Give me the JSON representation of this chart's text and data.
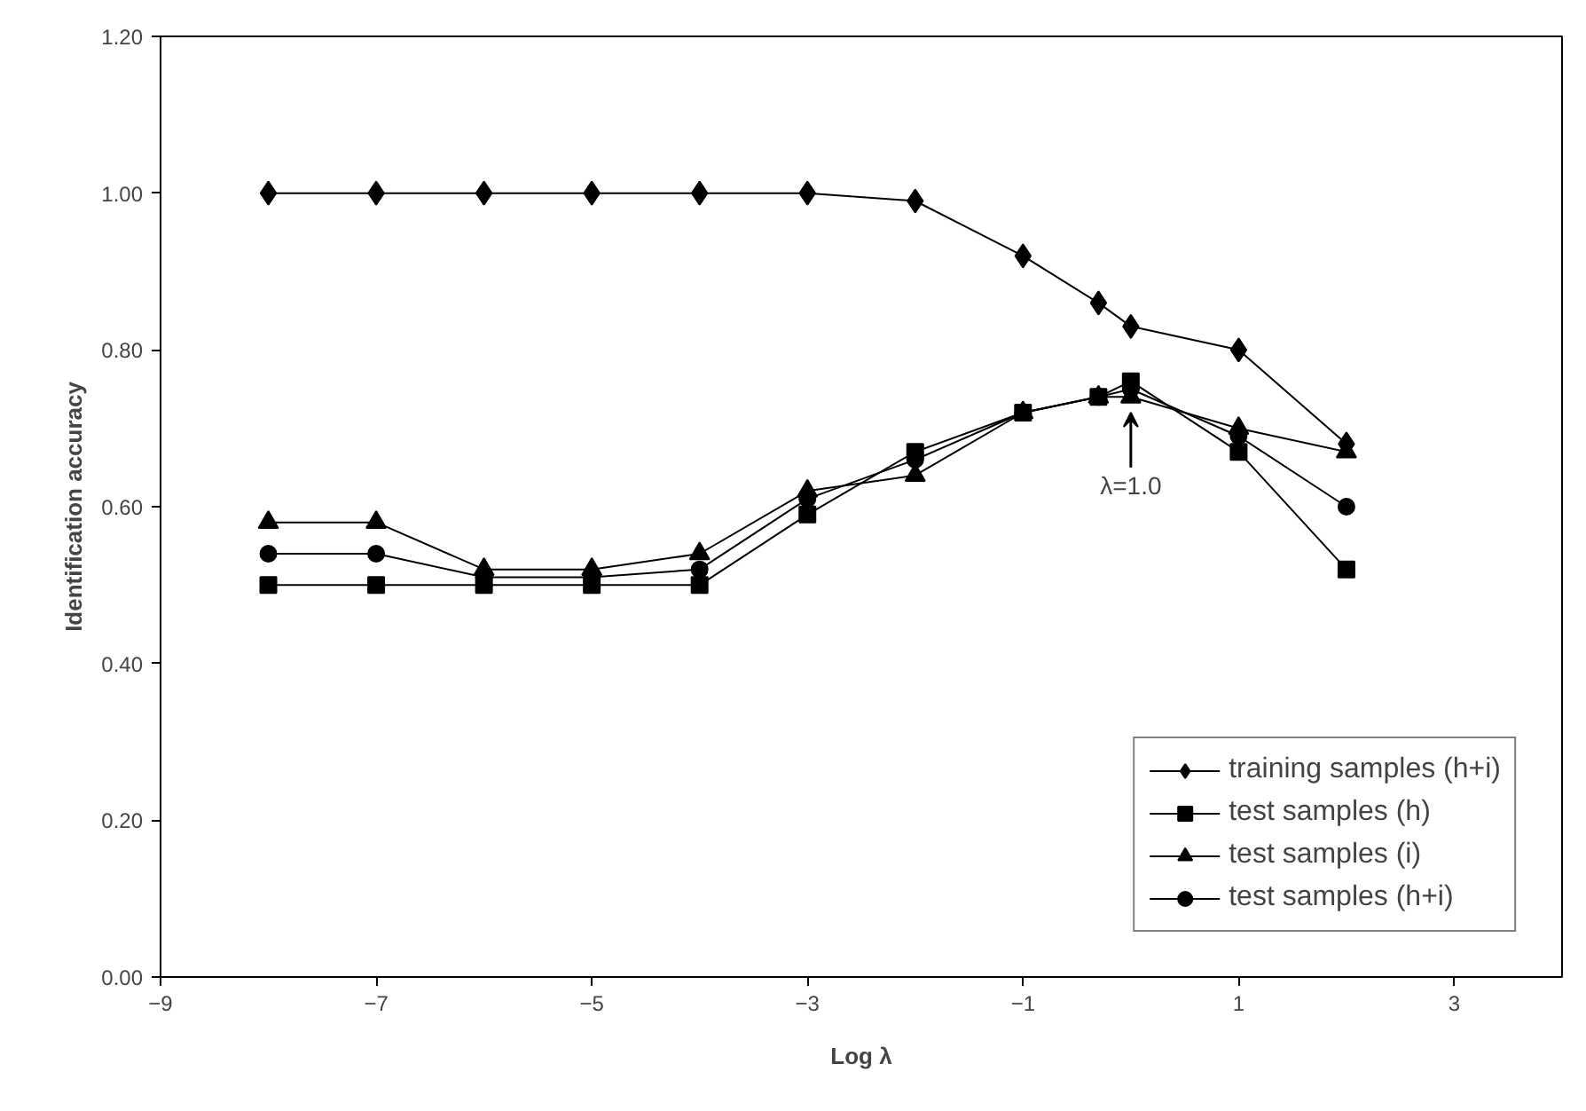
{
  "chart_data": {
    "type": "line",
    "xlabel": "Log λ",
    "ylabel": "Identification accuracy",
    "x": [
      -8,
      -7,
      -6,
      -5,
      -4,
      -3,
      -2,
      -1,
      -0.3,
      0,
      1,
      2
    ],
    "xlim": [
      -9,
      4
    ],
    "xticks": [
      -9,
      -7,
      -5,
      -3,
      -1,
      1,
      3
    ],
    "ylim": [
      0,
      1.2
    ],
    "yticks": [
      {
        "value": 0,
        "label": "0.00"
      },
      {
        "value": 0.2,
        "label": "0.20"
      },
      {
        "value": 0.4,
        "label": "0.40"
      },
      {
        "value": 0.6,
        "label": "0.60"
      },
      {
        "value": 0.8,
        "label": "0.80"
      },
      {
        "value": 1.0,
        "label": "1.00"
      },
      {
        "value": 1.2,
        "label": "1.20"
      }
    ],
    "grid": false,
    "legend": "bottom right",
    "line_style": "solid",
    "series": [
      {
        "name": "training samples (h+i)",
        "color": "#000000",
        "marker": "diamond",
        "values": [
          1.0,
          1.0,
          1.0,
          1.0,
          1.0,
          1.0,
          0.99,
          0.92,
          0.86,
          0.83,
          0.8,
          0.68
        ]
      },
      {
        "name": "test samples (h)",
        "color": "#000000",
        "marker": "square",
        "values": [
          0.5,
          0.5,
          0.5,
          0.5,
          0.5,
          0.59,
          0.67,
          0.72,
          0.74,
          0.76,
          0.67,
          0.52
        ]
      },
      {
        "name": "test samples (i)",
        "color": "#000000",
        "marker": "triangle",
        "values": [
          0.58,
          0.58,
          0.52,
          0.52,
          0.54,
          0.62,
          0.64,
          0.72,
          0.74,
          0.74,
          0.7,
          0.67
        ]
      },
      {
        "name": "test samples (h+i)",
        "color": "#000000",
        "marker": "circle",
        "values": [
          0.54,
          0.54,
          0.51,
          0.51,
          0.52,
          0.61,
          0.66,
          0.72,
          0.74,
          0.75,
          0.69,
          0.6
        ]
      }
    ],
    "annotations": [
      {
        "text": "λ=1.0",
        "x": 0,
        "y": 0.74
      }
    ]
  }
}
